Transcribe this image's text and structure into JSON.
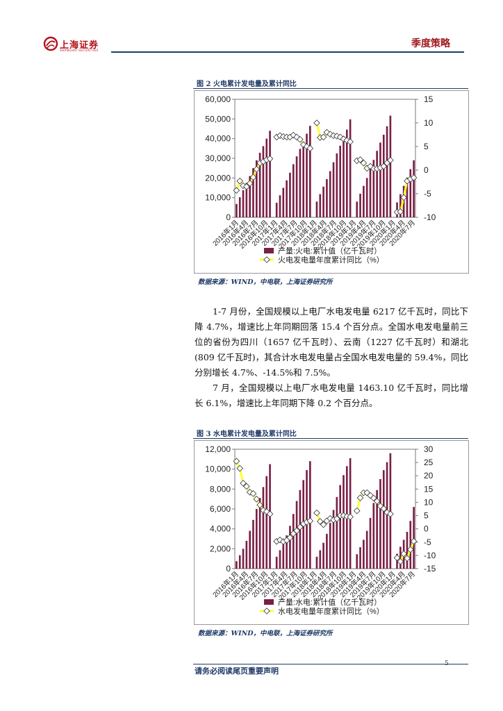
{
  "header": {
    "logo_text": "上海证券",
    "logo_sub": "SHANGHAI SECURITIES",
    "section": "季度策略"
  },
  "figures": [
    {
      "title": "图  2  火电累计发电量及累计同比",
      "source": "数据来源：WIND，中电联，上海证券研究所"
    },
    {
      "title": "图  3  水电累计发电量及累计同比",
      "source": "数据来源：WIND，中电联，上海证券研究所"
    }
  ],
  "paragraphs": [
    "1-7 月份，全国规模以上电厂水电发电量 6217 亿千瓦时，同比下降 4.7%，增速比上年同期回落 15.4 个百分点。全国水电发电量前三位的省份为四川（1657 亿千瓦时）、云南（1227 亿千瓦时）和湖北(809 亿千瓦时)，其合计水电发电量占全国水电发电量的 59.4%，同比分别增长 4.7%、-14.5%和 7.5%。",
    "7 月，全国规模以上电厂水电发电量 1463.10 亿千瓦时，同比增长 6.1%，增速比上年同期下降 0.2 个百分点。"
  ],
  "footer": {
    "disclaimer": "请务必阅读尾页重要声明",
    "page_number": "5"
  },
  "chart_data": [
    {
      "type": "bar",
      "title": "",
      "xlabel": "",
      "ylabel": "",
      "x_ticks": [
        "2016年1月",
        "2016年4月",
        "2016年7月",
        "2016年10月",
        "2017年1月",
        "2017年4月",
        "2017年7月",
        "2017年10月",
        "2018年1月",
        "2018年4月",
        "2018年7月",
        "2018年10月",
        "2019年1月",
        "2019年4月",
        "2019年7月",
        "2019年10月",
        "2020年1月",
        "2020年4月",
        "2020年7月"
      ],
      "ylim": [
        0,
        60000
      ],
      "y2lim": [
        -10,
        15
      ],
      "y_ticks": [
        "0",
        "10,000",
        "20,000",
        "30,000",
        "40,000",
        "50,000",
        "60,000"
      ],
      "y2_ticks": [
        "-10",
        "-5",
        "0",
        "5",
        "10",
        "15"
      ],
      "legend_position": "bottom",
      "bar_color": "#7a1f45",
      "line_color": "#ffff33",
      "series": [
        {
          "name": "产量:火电:累计值（亿千瓦时）",
          "kind": "bar",
          "values": [
            [
              6800,
              10200,
              13800,
              17500,
              21000,
              25000,
              29000,
              32800,
              36200,
              40000,
              44000
            ],
            [
              7400,
              11200,
              15000,
              18800,
              22700,
              27000,
              31000,
              34800,
              38500,
              42500,
              46500
            ],
            [
              8000,
              11800,
              15600,
              19400,
              23500,
              28000,
              32500,
              36400,
              40300,
              44600,
              49800
            ],
            [
              8000,
              12000,
              16000,
              20000,
              24700,
              29200,
              33800,
              38000,
              42000,
              46300,
              51700
            ],
            [
              7600,
              11800,
              16000,
              20200,
              24500,
              29000
            ]
          ]
        },
        {
          "name": "火电发电量年度累计同比（%）",
          "kind": "line",
          "values": [
            [
              -4.3,
              -2.3,
              -3.3,
              -3.5,
              -2.8,
              -1.5,
              0.2,
              1.5,
              1.8,
              2.2,
              2.4
            ],
            [
              7.0,
              7.3,
              7.1,
              7.0,
              7.0,
              7.4,
              7.0,
              6.5,
              5.4,
              5.0,
              4.6
            ],
            [
              10.0,
              6.9,
              7.0,
              8.0,
              7.6,
              7.3,
              7.2,
              7.0,
              6.6,
              6.3,
              6.0
            ],
            [
              2.0,
              2.2,
              1.5,
              0.4,
              0.8,
              0.3,
              0.3,
              0.5,
              0.8,
              1.5,
              2.1
            ],
            [
              -8.9,
              -8.8,
              -5.8,
              -2.3,
              -1.9,
              -1.6
            ]
          ]
        }
      ]
    },
    {
      "type": "bar",
      "title": "",
      "xlabel": "",
      "ylabel": "",
      "x_ticks": [
        "2016年1月",
        "2016年4月",
        "2016年7月",
        "2016年10月",
        "2017年1月",
        "2017年4月",
        "2017年7月",
        "2017年10月",
        "2018年1月",
        "2018年4月",
        "2018年7月",
        "2018年10月",
        "2019年1月",
        "2019年4月",
        "2019年7月",
        "2019年10月",
        "2020年1月",
        "2020年4月",
        "2020年7月"
      ],
      "ylim": [
        0,
        12000
      ],
      "y2lim": [
        -15,
        30
      ],
      "y_ticks": [
        "0",
        "2,000",
        "4,000",
        "6,000",
        "8,000",
        "10,000",
        "12,000"
      ],
      "y2_ticks": [
        "-15",
        "-10",
        "-5",
        "0",
        "5",
        "10",
        "15",
        "20",
        "25",
        "30"
      ],
      "legend_position": "bottom",
      "bar_color": "#7a1f45",
      "line_color": "#ffff33",
      "series": [
        {
          "name": "产量:水电:累计值（亿千瓦时）",
          "kind": "bar",
          "values": [
            [
              750,
              1350,
              2000,
              2800,
              3800,
              4900,
              6000,
              7100,
              8200,
              9300,
              10500
            ],
            [
              1200,
              1850,
              2550,
              3350,
              4300,
              5500,
              6800,
              7900,
              8900,
              9900,
              10800
            ],
            [
              1200,
              1850,
              2600,
              3500,
              4600,
              5900,
              7200,
              8400,
              9400,
              10300,
              11100
            ],
            [
              1450,
              2150,
              2900,
              3800,
              5100,
              6600,
              7900,
              9000,
              9900,
              10700,
              11600
            ],
            [
              1500,
              2200,
              2900,
              3700,
              4800,
              6200
            ]
          ]
        },
        {
          "name": "水电发电量年度累计同比（%）",
          "kind": "line",
          "values": [
            [
              25.5,
              22.8,
              17.2,
              16.0,
              13.8,
              13.3,
              11.2,
              9.0,
              7.0,
              6.5,
              5.6
            ],
            [
              -4.7,
              -4.2,
              -4.8,
              -4.3,
              -3.3,
              -1.8,
              -0.7,
              0.7,
              1.9,
              2.5,
              3.0
            ],
            [
              6.0,
              2.8,
              1.6,
              3.0,
              3.9,
              3.4,
              3.8,
              5.0,
              5.0,
              4.7,
              4.5
            ],
            [
              6.8,
              11.7,
              13.6,
              13.6,
              12.6,
              11.6,
              10.4,
              8.6,
              7.6,
              6.2,
              5.6
            ],
            [
              -10.9,
              -12.3,
              -9.4,
              -11.1,
              -7.8,
              -4.7
            ]
          ]
        }
      ]
    }
  ]
}
